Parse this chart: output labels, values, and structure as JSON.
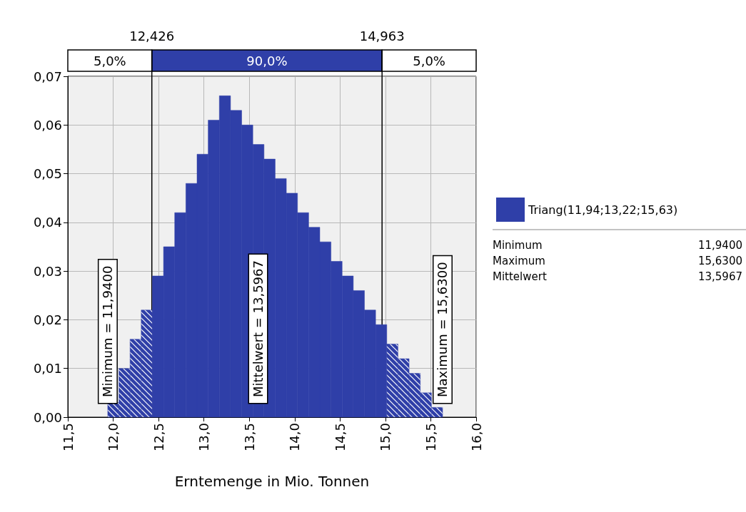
{
  "chart_data": {
    "type": "histogram",
    "xlabel": "Erntemenge in Mio. Tonnen",
    "bins": [
      11.94,
      12.063,
      12.186,
      12.309,
      12.432,
      12.555,
      12.678,
      12.801,
      12.924,
      13.047,
      13.17,
      13.293,
      13.416,
      13.539,
      13.662,
      13.785,
      13.908,
      14.031,
      14.154,
      14.277,
      14.4,
      14.523,
      14.646,
      14.769,
      14.892,
      15.015,
      15.138,
      15.261,
      15.384,
      15.507,
      15.63
    ],
    "series": [
      {
        "name": "Triang(11,94;13,22;15,63)",
        "color": "#2f3fa8",
        "values": [
          0.003,
          0.01,
          0.016,
          0.022,
          0.029,
          0.035,
          0.042,
          0.048,
          0.054,
          0.061,
          0.066,
          0.063,
          0.06,
          0.056,
          0.053,
          0.049,
          0.046,
          0.042,
          0.039,
          0.036,
          0.032,
          0.029,
          0.026,
          0.022,
          0.019,
          0.015,
          0.012,
          0.009,
          0.005,
          0.002
        ]
      }
    ],
    "xlim": [
      11.5,
      16
    ],
    "xticks": [
      {
        "value": 11.5,
        "label": "11,5"
      },
      {
        "value": 12,
        "label": "12,0"
      },
      {
        "value": 12.5,
        "label": "12,5"
      },
      {
        "value": 13,
        "label": "13,0"
      },
      {
        "value": 13.5,
        "label": "13,5"
      },
      {
        "value": 14,
        "label": "14,0"
      },
      {
        "value": 14.5,
        "label": "14,5"
      },
      {
        "value": 15,
        "label": "15,0"
      },
      {
        "value": 15.5,
        "label": "15,5"
      },
      {
        "value": 16,
        "label": "16,0"
      }
    ],
    "ylim": [
      0,
      0.07
    ],
    "yticks": [
      {
        "value": 0,
        "label": "0,00"
      },
      {
        "value": 0.01,
        "label": "0,01"
      },
      {
        "value": 0.02,
        "label": "0,02"
      },
      {
        "value": 0.03,
        "label": "0,03"
      },
      {
        "value": 0.04,
        "label": "0,04"
      },
      {
        "value": 0.05,
        "label": "0,05"
      },
      {
        "value": 0.06,
        "label": "0,06"
      },
      {
        "value": 0.07,
        "label": "0,07"
      }
    ],
    "grid": true,
    "legend": "right",
    "ref_lines": [
      {
        "axis": "x",
        "value": 12.426,
        "label": "12,426",
        "color": "#000000"
      },
      {
        "axis": "x",
        "value": 14.963,
        "label": "14,963",
        "color": "#000000"
      }
    ],
    "annotations": [
      {
        "text": "Minimum = 11,9400",
        "x": 11.94,
        "y": 0
      },
      {
        "text": "Mittelwert = 13,5967",
        "x": 13.5967,
        "y": 0
      },
      {
        "text": "Maximum = 15,6300",
        "x": 15.63,
        "y": 0
      },
      "5,0%",
      "90,0%",
      "5,0%",
      "Minimum",
      "11,9400",
      "Maximum",
      "15,6300",
      "Mittelwert",
      "13,5967"
    ]
  }
}
